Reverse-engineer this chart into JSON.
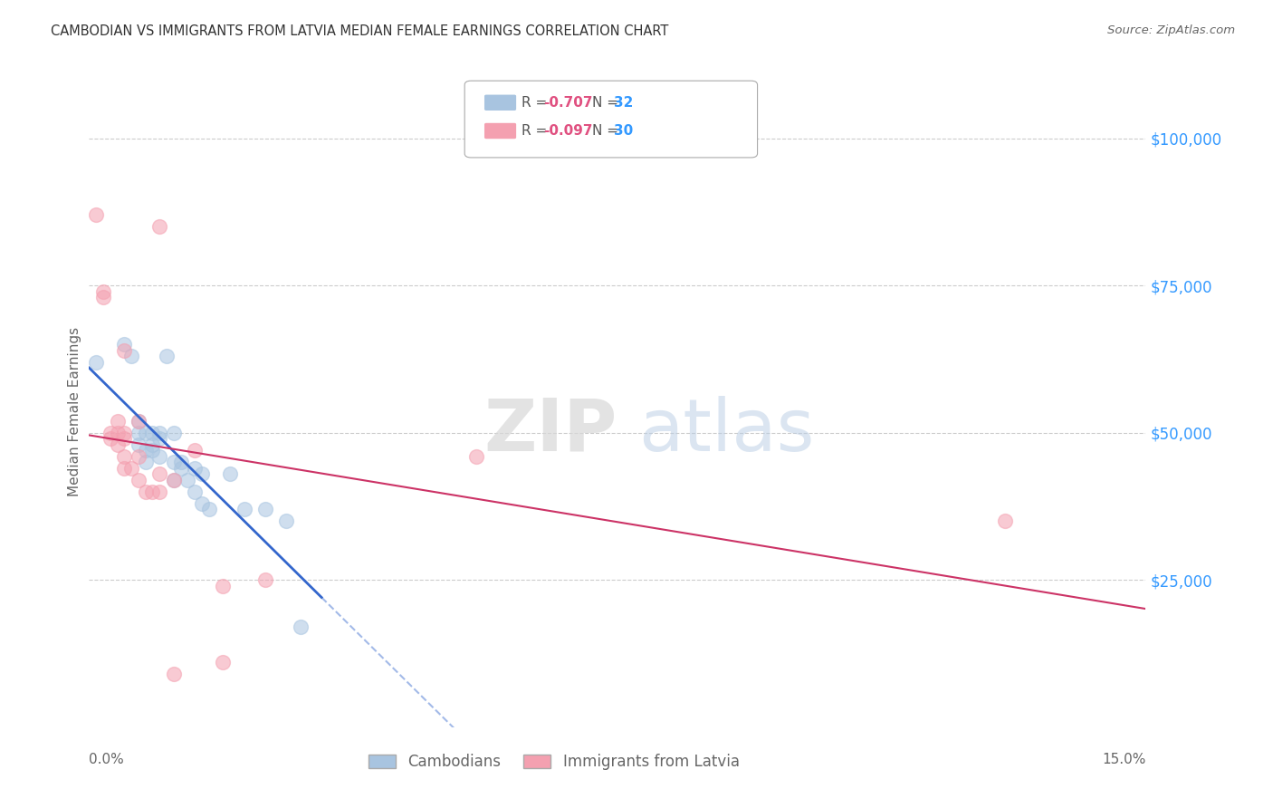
{
  "title": "CAMBODIAN VS IMMIGRANTS FROM LATVIA MEDIAN FEMALE EARNINGS CORRELATION CHART",
  "source": "Source: ZipAtlas.com",
  "ylabel": "Median Female Earnings",
  "ytick_labels": [
    "$25,000",
    "$50,000",
    "$75,000",
    "$100,000"
  ],
  "ytick_values": [
    25000,
    50000,
    75000,
    100000
  ],
  "xmin": 0.0,
  "xmax": 0.15,
  "ymin": 0,
  "ymax": 107000,
  "legend_cambodian": "Cambodians",
  "legend_latvia": "Immigrants from Latvia",
  "r_cambodian": "-0.707",
  "n_cambodian": "32",
  "r_latvia": "-0.097",
  "n_latvia": "30",
  "color_cambodian": "#a8c4e0",
  "color_cambodian_line": "#3366cc",
  "color_latvia": "#f4a0b0",
  "color_latvia_line": "#cc3366",
  "background_color": "#ffffff",
  "grid_color": "#cccccc",
  "title_color": "#333333",
  "axis_label_color": "#666666",
  "right_axis_color": "#3399ff",
  "marker_size": 130,
  "marker_alpha": 0.55,
  "cambodian_points": [
    [
      0.001,
      62000
    ],
    [
      0.005,
      65000
    ],
    [
      0.006,
      63000
    ],
    [
      0.007,
      52000
    ],
    [
      0.007,
      50000
    ],
    [
      0.007,
      48000
    ],
    [
      0.008,
      50000
    ],
    [
      0.008,
      47000
    ],
    [
      0.008,
      45000
    ],
    [
      0.009,
      50000
    ],
    [
      0.009,
      48000
    ],
    [
      0.009,
      47000
    ],
    [
      0.01,
      50000
    ],
    [
      0.01,
      49000
    ],
    [
      0.01,
      46000
    ],
    [
      0.011,
      63000
    ],
    [
      0.012,
      50000
    ],
    [
      0.012,
      45000
    ],
    [
      0.012,
      42000
    ],
    [
      0.013,
      45000
    ],
    [
      0.013,
      44000
    ],
    [
      0.014,
      42000
    ],
    [
      0.015,
      44000
    ],
    [
      0.015,
      40000
    ],
    [
      0.016,
      43000
    ],
    [
      0.016,
      38000
    ],
    [
      0.017,
      37000
    ],
    [
      0.02,
      43000
    ],
    [
      0.022,
      37000
    ],
    [
      0.025,
      37000
    ],
    [
      0.028,
      35000
    ],
    [
      0.03,
      17000
    ]
  ],
  "latvia_points": [
    [
      0.001,
      87000
    ],
    [
      0.002,
      74000
    ],
    [
      0.002,
      73000
    ],
    [
      0.003,
      50000
    ],
    [
      0.003,
      49000
    ],
    [
      0.004,
      52000
    ],
    [
      0.004,
      50000
    ],
    [
      0.004,
      48000
    ],
    [
      0.005,
      64000
    ],
    [
      0.005,
      50000
    ],
    [
      0.005,
      49000
    ],
    [
      0.005,
      46000
    ],
    [
      0.005,
      44000
    ],
    [
      0.006,
      44000
    ],
    [
      0.007,
      52000
    ],
    [
      0.007,
      46000
    ],
    [
      0.007,
      42000
    ],
    [
      0.008,
      40000
    ],
    [
      0.009,
      40000
    ],
    [
      0.01,
      40000
    ],
    [
      0.01,
      43000
    ],
    [
      0.01,
      85000
    ],
    [
      0.012,
      42000
    ],
    [
      0.012,
      9000
    ],
    [
      0.015,
      47000
    ],
    [
      0.019,
      24000
    ],
    [
      0.019,
      11000
    ],
    [
      0.025,
      25000
    ],
    [
      0.13,
      35000
    ],
    [
      0.055,
      46000
    ]
  ]
}
